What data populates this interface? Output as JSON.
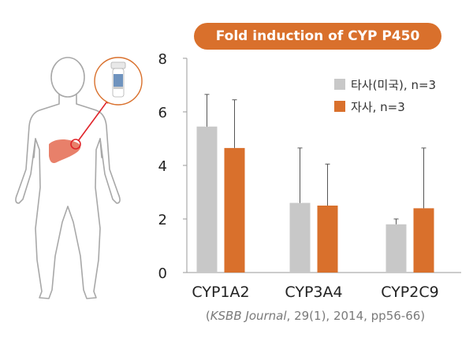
{
  "chart_data": {
    "type": "bar",
    "title": "Fold induction of CYP P450",
    "categories": [
      "CYP1A2",
      "CYP3A4",
      "CYP2C9"
    ],
    "ylim": [
      0,
      8
    ],
    "yticks": [
      "0",
      "2",
      "4",
      "6",
      "8"
    ],
    "grid": false,
    "legend_position": "top-right",
    "series": [
      {
        "name": "타사(미국), n=3",
        "values": [
          5.45,
          2.6,
          1.8
        ],
        "error": [
          1.2,
          2.05,
          0.2
        ],
        "color": "#c8c8c8"
      },
      {
        "name": "자사, n=3",
        "values": [
          4.65,
          2.5,
          2.4
        ],
        "error": [
          1.8,
          1.55,
          2.25
        ],
        "color": "#d9702c"
      }
    ]
  },
  "citation": {
    "prefix": "(",
    "journal": "KSBB Journal",
    "rest": ", 29(1), 2014, pp56-66)"
  },
  "colors": {
    "accent": "#d9702c",
    "liver": "#e8806a",
    "highlight": "#e0242a",
    "body_outline": "#a8a8a8"
  },
  "icons": {
    "figure": "human-body-icon",
    "organ": "liver-icon",
    "sample": "sample-tube-icon"
  }
}
